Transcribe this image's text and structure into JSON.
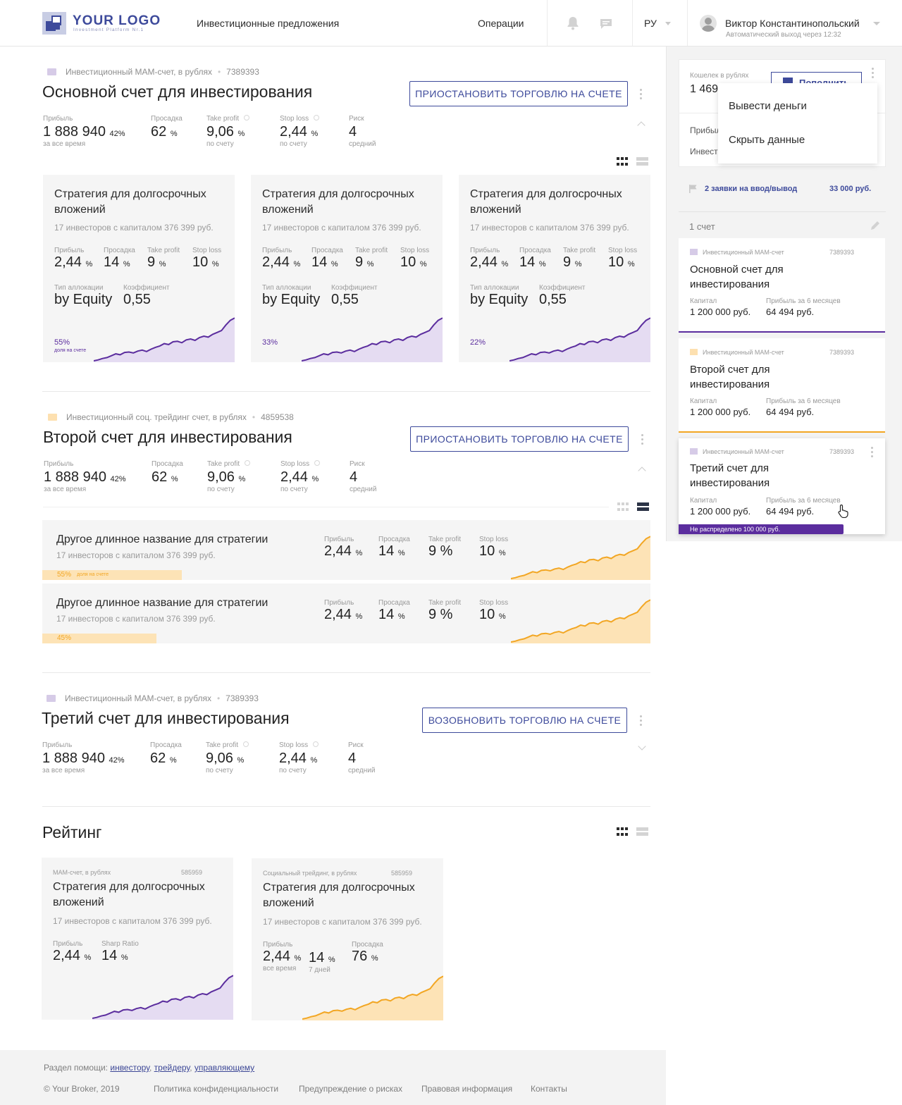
{
  "header": {
    "logo_text": "YOUR LOGO",
    "logo_sub": "Investment Platform Nr.1",
    "nav_offers": "Инвестиционные предложения",
    "nav_operations": "Операции",
    "lang": "РУ",
    "user_name": "Виктор Константинопольский",
    "user_sub": "Автоматический выход через 12:32"
  },
  "accounts": [
    {
      "type": "Инвестиционный МАМ-счет,  в рублях",
      "id": "7389393",
      "title": "Основной счет для инвестирования",
      "button": "ПРИОСТАНОВИТЬ ТОРГОВЛЮ НА СЧЕТЕ",
      "stats": {
        "profit_label": "Прибыль",
        "profit": "1 888 940",
        "profit_pct": "42%",
        "profit_note": "за все время",
        "drawdown_label": "Просадка",
        "drawdown": "62",
        "drawdown_unit": "%",
        "tp_label": "Take profit",
        "tp": "9,06",
        "tp_unit": "%",
        "tp_note": "по счету",
        "sl_label": "Stop loss",
        "sl": "2,44",
        "sl_unit": "%",
        "sl_note": "по счету",
        "risk_label": "Риск",
        "risk": "4",
        "risk_note": "средний"
      }
    },
    {
      "type": "Инвестиционный соц. трейдинг счет, в рублях",
      "id": "4859538",
      "title": "Второй счет для инвестирования",
      "button": "ПРИОСТАНОВИТЬ ТОРГОВЛЮ НА СЧЕТЕ",
      "stats": {
        "profit_label": "Прибыль",
        "profit": "1 888 940",
        "profit_pct": "42%",
        "profit_note": "за все время",
        "drawdown_label": "Просадка",
        "drawdown": "62",
        "drawdown_unit": "%",
        "tp_label": "Take profit",
        "tp": "9,06",
        "tp_unit": "%",
        "tp_note": "по счету",
        "sl_label": "Stop loss",
        "sl": "2,44",
        "sl_unit": "%",
        "sl_note": "по счету",
        "risk_label": "Риск",
        "risk": "4",
        "risk_note": "средний"
      }
    },
    {
      "type": "Инвестиционный МАМ-счет,  в рублях",
      "id": "7389393",
      "title": "Третий счет для инвестирования",
      "button": "ВОЗОБНОВИТЬ ТОРГОВЛЮ НА СЧЕТЕ",
      "stats": {
        "profit_label": "Прибыль",
        "profit": "1 888 940",
        "profit_pct": "42%",
        "profit_note": "за все время",
        "drawdown_label": "Просадка",
        "drawdown": "62",
        "drawdown_unit": "%",
        "tp_label": "Take profit",
        "tp": "9,06",
        "tp_unit": "%",
        "tp_note": "по счету",
        "sl_label": "Stop loss",
        "sl": "2,44",
        "sl_unit": "%",
        "sl_note": "по счету",
        "risk_label": "Риск",
        "risk": "4",
        "risk_note": "средний"
      }
    }
  ],
  "strategy": {
    "title": "Стратегия для долгосрочных вложений",
    "investors": "17 инвесторов с капиталом 376 399 руб.",
    "profit_label": "Прибыль",
    "profit": "2,44",
    "drawdown_label": "Просадка",
    "drawdown": "14",
    "tp_label": "Take profit",
    "tp": "9",
    "sl_label": "Stop loss",
    "sl": "10",
    "pct": "%",
    "alloc_label": "Тип аллокации",
    "alloc": "by Equity",
    "coef_label": "Коэффициент",
    "coef": "0,55",
    "share_note": "доля на счете"
  },
  "strategy_cards": [
    {
      "share": "55%",
      "share_value": 55
    },
    {
      "share": "33%",
      "share_value": 33
    },
    {
      "share": "22%",
      "share_value": 22
    }
  ],
  "strategy_rows": {
    "title": "Другое длинное название для стратегии",
    "investors": "17 инвесторов с капиталом 376 399 руб.",
    "profit_label": "Прибыль",
    "profit": "2,44",
    "drawdown_label": "Просадка",
    "drawdown": "14",
    "tp_label": "Take profit",
    "tp": "9 %",
    "sl_label": "Stop loss",
    "sl": "10",
    "pct": "%",
    "share_note": "доля на счете",
    "items": [
      {
        "share": "55%",
        "share_value": 55
      },
      {
        "share": "45%",
        "share_value": 45
      }
    ]
  },
  "rating": {
    "title": "Рейтинг",
    "cards": [
      {
        "type": "МАМ-счет, в рублях",
        "id": "585959",
        "title": "Стратегия для долгосрочных вложений",
        "investors": "17 инвесторов с капиталом 376 399 руб.",
        "l1": "Прибыль",
        "v1": "2,44",
        "l2": "Sharp Ratio",
        "v2": "14",
        "unit": "%"
      },
      {
        "type": "Социальный трейдинг, в рублях",
        "id": "585959",
        "title": "Стратегия для долгосрочных вложений",
        "investors": "17 инвесторов с капиталом 376 399 руб.",
        "l1": "Прибыль",
        "v1": "2,44",
        "n1": "все время",
        "v2": "14",
        "n2": "7 дней",
        "l3": "Просадка",
        "v3": "76",
        "unit": "%"
      }
    ]
  },
  "sidebar": {
    "wallet_label": "Кошелек в рублях",
    "wallet_value": "1 469",
    "topup": "Пополнить",
    "profit_cut": "Прибыль",
    "invest_cut": "Инвест",
    "menu": [
      "Вывести деньги",
      "Скрыть данные"
    ],
    "requests": "2 заявки на ввод/вывод",
    "requests_sum": "33 000 руб.",
    "count": "1 счет",
    "accounts": [
      {
        "type": "Инвестиционный МАМ-счет",
        "id": "7389393",
        "title": "Основной счет для инвестирования",
        "cap_label": "Капитал",
        "cap": "1 200 000 руб.",
        "profit_label": "Прибыль за 6 месяцев",
        "profit": "64 494 руб."
      },
      {
        "type": "Инвестиционный МАМ-счет",
        "id": "7389393",
        "title": "Второй счет для инвестирования",
        "cap_label": "Капитал",
        "cap": "1 200 000 руб.",
        "profit_label": "Прибыль за 6 месяцев",
        "profit": "64 494 руб."
      },
      {
        "type": "Инвестиционный МАМ-счет",
        "id": "7389393",
        "title": "Третий счет для инвестирования",
        "cap_label": "Капитал",
        "cap": "1 200 000 руб.",
        "profit_label": "Прибыль за 6 месяцев",
        "profit": "64 494 руб.",
        "undistributed": "Не распределено 100 000 руб."
      }
    ]
  },
  "footer": {
    "help": "Раздел помощи:",
    "links": [
      "инвестору",
      "трейдеру",
      "управляющему"
    ],
    "copyright": "© Your Broker, 2019",
    "bottom": [
      "Политика конфиденциальности",
      "Предупреждение о рисках",
      "Правовая информация",
      "Контакты"
    ]
  },
  "colors": {
    "accent": "#3d4a9b",
    "purple": "#5b2d9e",
    "orange": "#f2a623",
    "orange_fill": "#fde3b6",
    "purple_fill": "#e5dcf2"
  }
}
